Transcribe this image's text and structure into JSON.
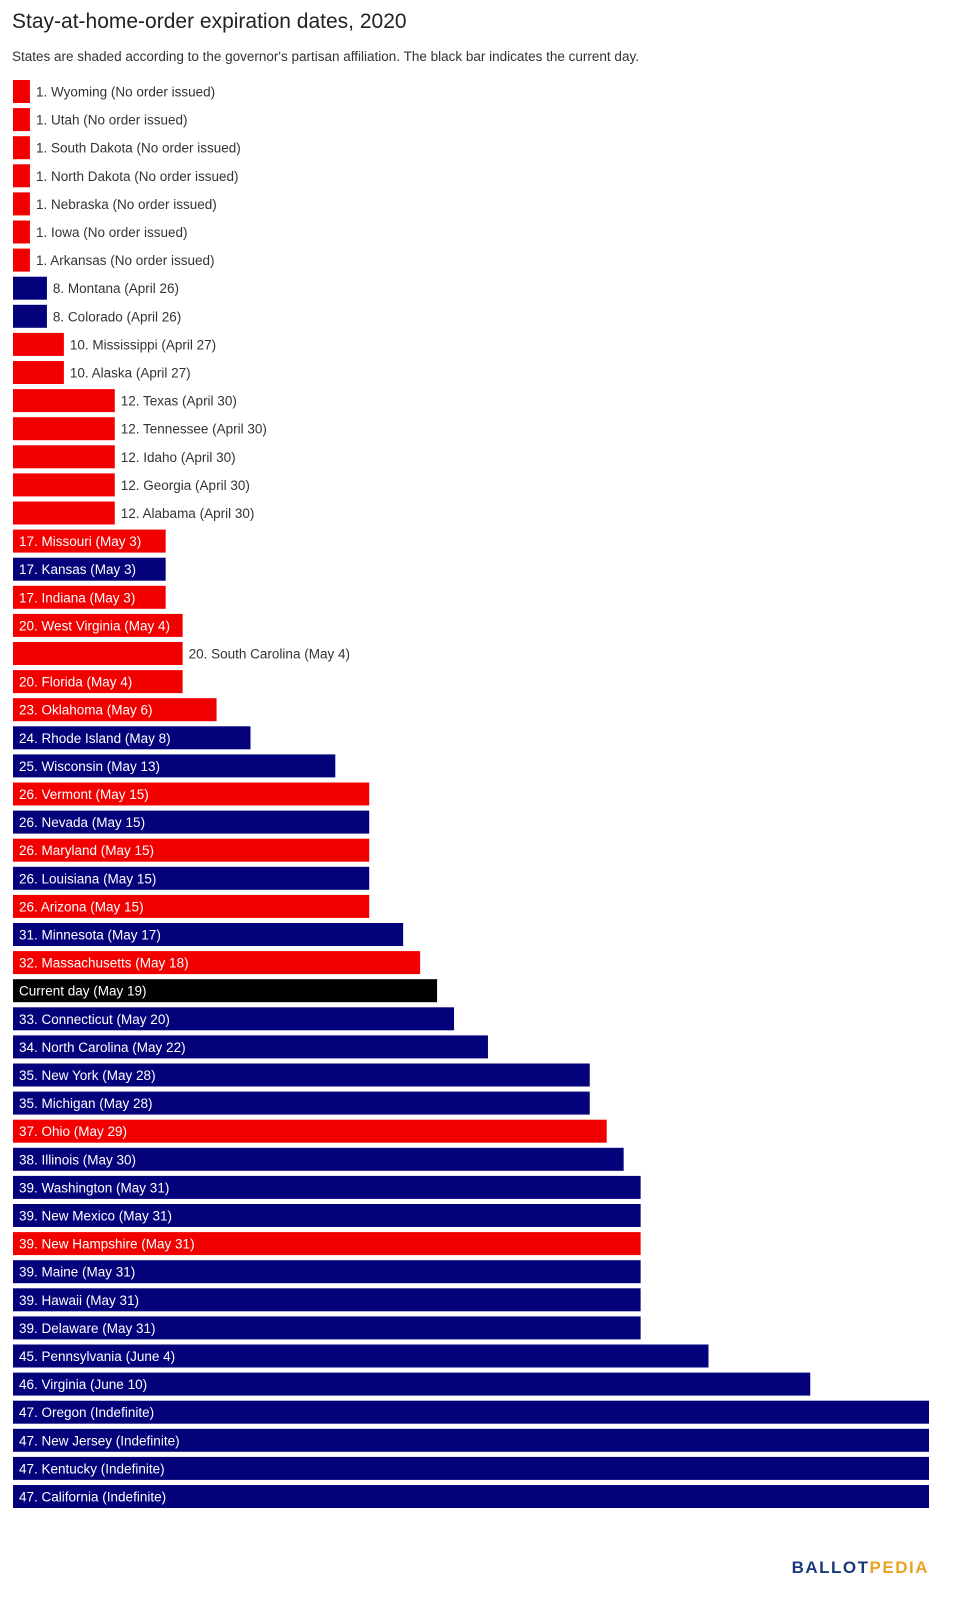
{
  "title": "Stay-at-home-order expiration dates, 2020",
  "subtitle": "States are shaded according to the governor's partisan affiliation. The black bar indicates the current day.",
  "logo": {
    "part1": "BALLOT",
    "part2": "PEDIA"
  },
  "colors": {
    "Republican": "#f20000",
    "Democratic": "#03027b",
    "current": "#000000"
  },
  "chart_data": {
    "type": "bar",
    "orientation": "horizontal",
    "xlim": [
      0,
      54
    ],
    "categories": [
      "1. Wyoming (No order issued)",
      "1. Utah (No order issued)",
      "1. South Dakota (No order issued)",
      "1. North Dakota (No order issued)",
      "1. Nebraska (No order issued)",
      "1. Iowa (No order issued)",
      "1. Arkansas (No order issued)",
      "8. Montana (April 26)",
      "8. Colorado (April 26)",
      "10. Mississippi (April 27)",
      "10. Alaska (April 27)",
      "12. Texas (April 30)",
      "12. Tennessee (April 30)",
      "12. Idaho (April 30)",
      "12. Georgia (April 30)",
      "12. Alabama (April 30)",
      "17. Missouri (May 3)",
      "17. Kansas (May 3)",
      "17. Indiana (May 3)",
      "20. West Virginia (May 4)",
      "20. South Carolina (May 4)",
      "20. Florida (May 4)",
      "23. Oklahoma (May 6)",
      "24. Rhode Island (May 8)",
      "25. Wisconsin (May 13)",
      "26. Vermont (May 15)",
      "26. Nevada (May 15)",
      "26. Maryland (May 15)",
      "26. Louisiana (May 15)",
      "26. Arizona (May 15)",
      "31. Minnesota (May 17)",
      "32. Massachusetts (May 18)",
      "Current day (May 19)",
      "33. Connecticut (May 20)",
      "34. North Carolina (May 22)",
      "35. New York (May 28)",
      "35. Michigan (May 28)",
      "37. Ohio (May 29)",
      "38. Illinois (May 30)",
      "39. Washington (May 31)",
      "39. New Mexico (May 31)",
      "39. New Hampshire (May 31)",
      "39. Maine (May 31)",
      "39. Hawaii (May 31)",
      "39. Delaware (May 31)",
      "45. Pennsylvania (June 4)",
      "46. Virginia (June 10)",
      "47. Oregon (Indefinite)",
      "47. New Jersey (Indefinite)",
      "47. Kentucky (Indefinite)",
      "47. California (Indefinite)"
    ],
    "values": [
      1,
      1,
      1,
      1,
      1,
      1,
      1,
      2,
      2,
      3,
      3,
      6,
      6,
      6,
      6,
      6,
      9,
      9,
      9,
      10,
      10,
      10,
      12,
      14,
      19,
      21,
      21,
      21,
      21,
      21,
      23,
      24,
      25,
      26,
      28,
      34,
      34,
      35,
      36,
      37,
      37,
      37,
      37,
      37,
      37,
      41,
      47,
      54,
      54,
      54,
      54
    ],
    "party": [
      "Republican",
      "Republican",
      "Republican",
      "Republican",
      "Republican",
      "Republican",
      "Republican",
      "Democratic",
      "Democratic",
      "Republican",
      "Republican",
      "Republican",
      "Republican",
      "Republican",
      "Republican",
      "Republican",
      "Republican",
      "Democratic",
      "Republican",
      "Republican",
      "Republican",
      "Republican",
      "Republican",
      "Democratic",
      "Democratic",
      "Republican",
      "Democratic",
      "Republican",
      "Democratic",
      "Republican",
      "Democratic",
      "Republican",
      "current",
      "Democratic",
      "Democratic",
      "Democratic",
      "Democratic",
      "Republican",
      "Democratic",
      "Democratic",
      "Democratic",
      "Republican",
      "Democratic",
      "Democratic",
      "Democratic",
      "Democratic",
      "Democratic",
      "Democratic",
      "Democratic",
      "Democratic",
      "Democratic"
    ],
    "grid": false,
    "legend": "none"
  }
}
